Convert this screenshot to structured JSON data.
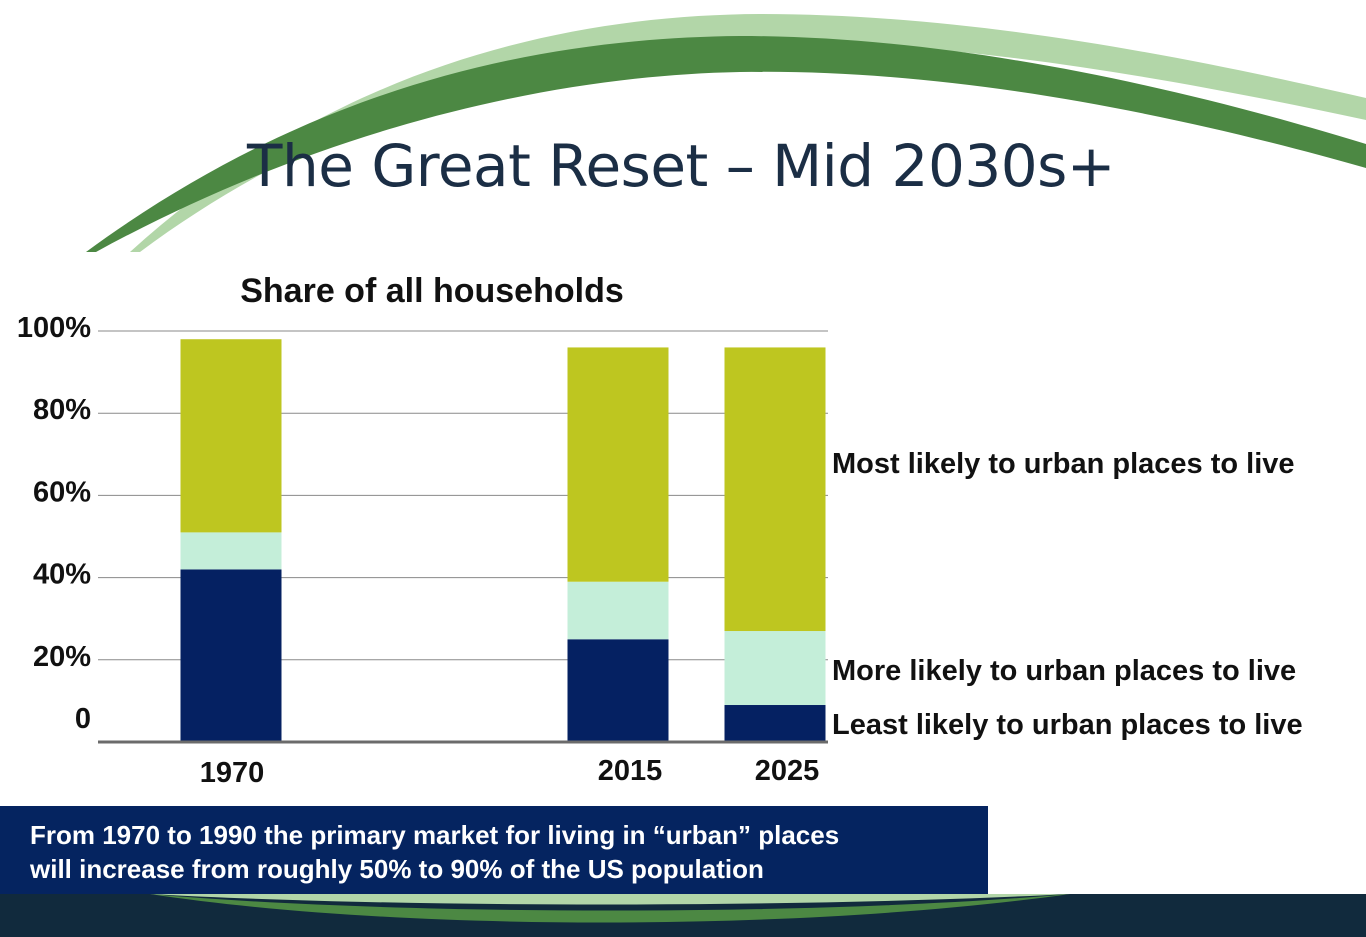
{
  "slide": {
    "title": "The Great Reset – Mid 2030s+",
    "callout_lines": [
      "From 1970 to 1990 the primary market for living in “urban” places",
      "will increase from roughly 50% to 90% of the US population"
    ]
  },
  "colors": {
    "least": "#052162",
    "more": "#c4eed9",
    "most": "#bec620",
    "swoosh_dark": "#4c8843",
    "swoosh_light": "#b2d6a8",
    "footer": "#112a3d",
    "callout_bg": "#052460"
  },
  "chart_data": {
    "type": "bar",
    "stacked": true,
    "title": "Share of all households",
    "categories": [
      "1970",
      "2015",
      "2025"
    ],
    "y_tick_labels": [
      "0",
      "20%",
      "40%",
      "60%",
      "80%",
      "100%"
    ],
    "ylim": [
      0,
      100
    ],
    "grid": true,
    "series": [
      {
        "name": "Least likely to urban places to live",
        "values": [
          42,
          25,
          9
        ]
      },
      {
        "name": "More likely to urban places to live",
        "values": [
          9,
          14,
          18
        ]
      },
      {
        "name": "Most likely to urban places to live",
        "values": [
          47,
          57,
          69
        ]
      }
    ],
    "legend_placement": "right, beside segments"
  }
}
